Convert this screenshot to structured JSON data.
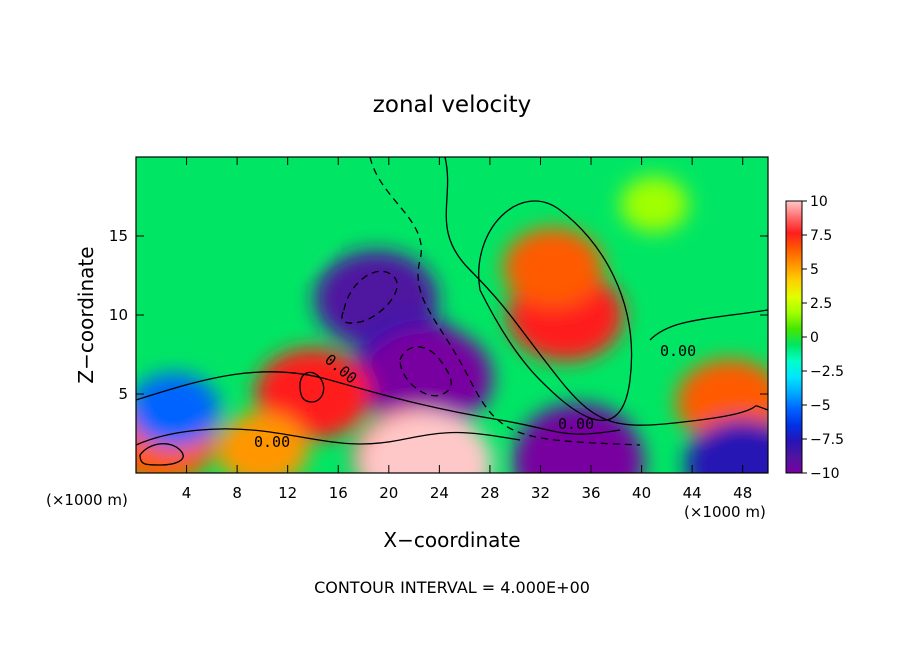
{
  "chart_data": {
    "type": "heatmap",
    "title": "zonal velocity",
    "xlabel": "X−coordinate",
    "ylabel": "Z−coordinate",
    "x_unit_left": "(×1000 m)",
    "x_unit_right": "(×1000 m)",
    "x_ticks": [
      4,
      8,
      12,
      16,
      20,
      24,
      28,
      32,
      36,
      40,
      44,
      48
    ],
    "y_ticks": [
      5,
      10,
      15
    ],
    "xlim": [
      0,
      50
    ],
    "ylim": [
      0,
      20
    ],
    "colorbar": {
      "ticks": [
        "10",
        "7.5",
        "5",
        "2.5",
        "0",
        "−2.5",
        "−5",
        "−7.5",
        "−10"
      ],
      "range": [
        -10,
        10
      ],
      "colors": [
        "#ffc8c8",
        "#ff6e6e",
        "#ff1e1e",
        "#ff5a00",
        "#ff9600",
        "#ffd200",
        "#e1ff00",
        "#a0ff00",
        "#46e600",
        "#00e664",
        "#00ffc8",
        "#00e6ff",
        "#00aaff",
        "#0064ff",
        "#0032e6",
        "#2814b4",
        "#5014a0",
        "#7800a0"
      ]
    },
    "contour_labels": [
      "0.00",
      "0.00",
      "0.00",
      "0.00"
    ],
    "footer": "CONTOUR INTERVAL = 4.000E+00",
    "features": [
      {
        "x": 34,
        "z": 10,
        "value": 8
      },
      {
        "x": 33,
        "z": 13,
        "value": 6
      },
      {
        "x": 19,
        "z": 11,
        "value": -9
      },
      {
        "x": 22,
        "z": 7,
        "value": -8
      },
      {
        "x": 23,
        "z": 6,
        "value": -10
      },
      {
        "x": 14,
        "z": 5,
        "value": 8
      },
      {
        "x": 2,
        "z": 2,
        "value": 7
      },
      {
        "x": 10,
        "z": 1.5,
        "value": 5
      },
      {
        "x": 22,
        "z": 1,
        "value": 9
      },
      {
        "x": 23,
        "z": 0.6,
        "value": 10
      },
      {
        "x": 35,
        "z": 1.3,
        "value": -9
      },
      {
        "x": 35,
        "z": 0.7,
        "value": -10
      },
      {
        "x": 47,
        "z": 4.5,
        "value": 7
      },
      {
        "x": 41,
        "z": 17,
        "value": 2
      },
      {
        "x": 12,
        "z": 15,
        "value": -1
      },
      {
        "x": 3,
        "z": 4,
        "value": -5
      },
      {
        "x": 48,
        "z": 0.5,
        "value": -8
      }
    ]
  }
}
